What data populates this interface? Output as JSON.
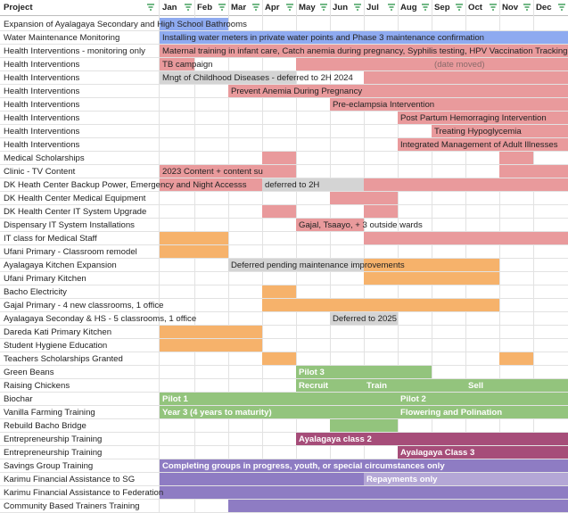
{
  "colors": {
    "blue": "#8eaaf0",
    "pink": "#e99a9c",
    "gray": "#d4d4d4",
    "orange": "#f6b26b",
    "green": "#93c47d",
    "magenta": "#a64d79",
    "purple": "#8e7cc3",
    "light_purple": "#b4a7d6"
  },
  "header": {
    "project": "Project",
    "months": [
      "Jan",
      "Feb",
      "Mar",
      "Apr",
      "May",
      "Jun",
      "Jul",
      "Aug",
      "Sep",
      "Oct",
      "Nov",
      "Dec"
    ]
  },
  "rows": [
    {
      "project": "Expansion of Ayalagaya Secondary and High School Bathrooms",
      "bars": [
        {
          "from": 0,
          "to": 2,
          "color": "blue"
        }
      ],
      "texts": []
    },
    {
      "project": "Water Maintenance Monitoring",
      "bars": [
        {
          "from": 0,
          "to": 12,
          "color": "blue"
        }
      ],
      "texts": [
        {
          "col": 0,
          "text": "Installing water meters in private water points and Phase 3 maintenance confirmation"
        }
      ]
    },
    {
      "project": "Health Interventions - monitoring only",
      "bars": [
        {
          "from": 0,
          "to": 12,
          "color": "pink"
        }
      ],
      "texts": [
        {
          "col": 0,
          "text": "Maternal training in infant care, Catch anemia during pregnancy, Syphilis testing, HPV Vaccination Tracking"
        }
      ]
    },
    {
      "project": "Health Interventions",
      "bars": [
        {
          "from": 0,
          "to": 1,
          "color": "pink"
        },
        {
          "from": 4,
          "to": 12,
          "color": "pink"
        }
      ],
      "texts": [
        {
          "col": 0,
          "text": "TB campaign"
        },
        {
          "col": 8,
          "text": "(date moved)",
          "muted": true
        }
      ]
    },
    {
      "project": "Health Interventions",
      "bars": [
        {
          "from": 0,
          "to": 4,
          "color": "gray"
        },
        {
          "from": 6,
          "to": 12,
          "color": "pink"
        }
      ],
      "texts": [
        {
          "col": 0,
          "text": "Mngt of Childhood Diseases - deferred to 2H 2024"
        }
      ]
    },
    {
      "project": "Health Interventions",
      "bars": [
        {
          "from": 2,
          "to": 12,
          "color": "pink"
        }
      ],
      "texts": [
        {
          "col": 2,
          "text": "Prevent Anemia During Pregnancy"
        }
      ]
    },
    {
      "project": "Health Interventions",
      "bars": [
        {
          "from": 5,
          "to": 12,
          "color": "pink"
        }
      ],
      "texts": [
        {
          "col": 5,
          "text": "Pre-eclampsia Intervention"
        }
      ]
    },
    {
      "project": "Health Interventions",
      "bars": [
        {
          "from": 7,
          "to": 12,
          "color": "pink"
        }
      ],
      "texts": [
        {
          "col": 7,
          "text": "Post Partum Hemorraging Intervention"
        }
      ]
    },
    {
      "project": "Health Interventions",
      "bars": [
        {
          "from": 8,
          "to": 12,
          "color": "pink"
        }
      ],
      "texts": [
        {
          "col": 8,
          "text": "Treating Hypoglycemia"
        }
      ]
    },
    {
      "project": "Health Interventions",
      "bars": [
        {
          "from": 7,
          "to": 12,
          "color": "pink"
        }
      ],
      "texts": [
        {
          "col": 7,
          "text": "Integrated Management of Adult Illnesses"
        }
      ]
    },
    {
      "project": "Medical Scholarships",
      "bars": [
        {
          "from": 3,
          "to": 4,
          "color": "pink"
        },
        {
          "from": 10,
          "to": 11,
          "color": "pink"
        }
      ],
      "texts": []
    },
    {
      "project": "Clinic - TV Content",
      "bars": [
        {
          "from": 0,
          "to": 4,
          "color": "pink"
        },
        {
          "from": 10,
          "to": 12,
          "color": "pink"
        }
      ],
      "texts": [
        {
          "col": 0,
          "text": "2023 Content + content su"
        }
      ]
    },
    {
      "project": "DK Heath Center Backup Power, Emergency and Night Accesss",
      "bars": [
        {
          "from": 0,
          "to": 3,
          "color": "pink"
        },
        {
          "from": 3,
          "to": 6,
          "color": "gray"
        },
        {
          "from": 6,
          "to": 12,
          "color": "pink"
        }
      ],
      "texts": [
        {
          "col": 3,
          "text": "deferred to 2H"
        }
      ]
    },
    {
      "project": "DK Health Center Medical Equipment",
      "bars": [
        {
          "from": 5,
          "to": 7,
          "color": "pink"
        }
      ],
      "texts": []
    },
    {
      "project": "DK Health Center IT System Upgrade",
      "bars": [
        {
          "from": 3,
          "to": 4,
          "color": "pink"
        },
        {
          "from": 6,
          "to": 7,
          "color": "pink"
        }
      ],
      "texts": []
    },
    {
      "project": "Dispensary IT System Installations",
      "bars": [
        {
          "from": 4,
          "to": 6,
          "color": "pink"
        }
      ],
      "texts": [
        {
          "col": 4,
          "text": "Gajal, Tsaayo, + 3 outside wards"
        }
      ]
    },
    {
      "project": "IT class for Medical Staff",
      "bars": [
        {
          "from": 0,
          "to": 2,
          "color": "orange"
        },
        {
          "from": 6,
          "to": 12,
          "color": "pink"
        }
      ],
      "texts": []
    },
    {
      "project": "Ufani Primary - Classroom remodel",
      "bars": [
        {
          "from": 0,
          "to": 2,
          "color": "orange"
        }
      ],
      "texts": []
    },
    {
      "project": "Ayalagaya Kitchen Expansion",
      "bars": [
        {
          "from": 2,
          "to": 6,
          "color": "gray"
        },
        {
          "from": 6,
          "to": 10,
          "color": "orange"
        }
      ],
      "texts": [
        {
          "col": 2,
          "text": "Deferred pending maintenance improvements"
        }
      ]
    },
    {
      "project": "Ufani Primary Kitchen",
      "bars": [
        {
          "from": 6,
          "to": 10,
          "color": "orange"
        }
      ],
      "texts": []
    },
    {
      "project": "Bacho Electricity",
      "bars": [
        {
          "from": 3,
          "to": 4,
          "color": "orange"
        }
      ],
      "texts": []
    },
    {
      "project": "Gajal Primary - 4 new classrooms, 1 office",
      "bars": [
        {
          "from": 3,
          "to": 10,
          "color": "orange"
        }
      ],
      "texts": []
    },
    {
      "project": "Ayalagaya Seconday & HS - 5 classrooms, 1 office",
      "bars": [
        {
          "from": 5,
          "to": 7,
          "color": "gray"
        }
      ],
      "texts": [
        {
          "col": 5,
          "text": "Deferred to 2025"
        }
      ]
    },
    {
      "project": "Dareda Kati Primary Kitchen",
      "bars": [
        {
          "from": 0,
          "to": 3,
          "color": "orange"
        }
      ],
      "texts": []
    },
    {
      "project": "Student Hygiene Education",
      "bars": [
        {
          "from": 0,
          "to": 3,
          "color": "orange"
        }
      ],
      "texts": []
    },
    {
      "project": "Teachers Scholarships Granted",
      "bars": [
        {
          "from": 3,
          "to": 4,
          "color": "orange"
        },
        {
          "from": 10,
          "to": 11,
          "color": "orange"
        }
      ],
      "texts": []
    },
    {
      "project": "Green Beans",
      "bars": [
        {
          "from": 4,
          "to": 8,
          "color": "green"
        }
      ],
      "texts": [
        {
          "col": 4,
          "text": "Pilot 3",
          "white": true
        }
      ]
    },
    {
      "project": "Raising Chickens",
      "bars": [
        {
          "from": 4,
          "to": 12,
          "color": "green"
        }
      ],
      "texts": [
        {
          "col": 4,
          "text": "Recruit",
          "white": true
        },
        {
          "col": 6,
          "text": "Train",
          "white": true
        },
        {
          "col": 9,
          "text": "Sell",
          "white": true
        }
      ]
    },
    {
      "project": "Biochar",
      "bars": [
        {
          "from": 0,
          "to": 12,
          "color": "green"
        }
      ],
      "texts": [
        {
          "col": 0,
          "text": "Pilot 1",
          "white": true
        },
        {
          "col": 7,
          "text": "Pilot 2",
          "white": true
        }
      ]
    },
    {
      "project": "Vanilla Farming Training",
      "bars": [
        {
          "from": 0,
          "to": 12,
          "color": "green"
        }
      ],
      "texts": [
        {
          "col": 0,
          "text": "Year 3 (4 years to maturity)",
          "white": true
        },
        {
          "col": 7,
          "text": "Flowering and Polination",
          "white": true
        }
      ]
    },
    {
      "project": "Rebuild Bacho Bridge",
      "bars": [
        {
          "from": 5,
          "to": 7,
          "color": "green"
        }
      ],
      "texts": []
    },
    {
      "project": "Entrepreneurship Training",
      "bars": [
        {
          "from": 4,
          "to": 12,
          "color": "magenta"
        }
      ],
      "texts": [
        {
          "col": 4,
          "text": "Ayalagaya class 2",
          "white": true
        }
      ]
    },
    {
      "project": "Entrepreneurship Training",
      "bars": [
        {
          "from": 7,
          "to": 12,
          "color": "magenta"
        }
      ],
      "texts": [
        {
          "col": 7,
          "text": "Ayalagaya Class 3",
          "white": true
        }
      ]
    },
    {
      "project": "Savings Group Training",
      "bars": [
        {
          "from": 0,
          "to": 12,
          "color": "purple"
        }
      ],
      "texts": [
        {
          "col": 0,
          "text": "Completing groups in progress, youth, or special circumstances only",
          "white": true
        }
      ]
    },
    {
      "project": "Karimu Financial Assistance to SG",
      "bars": [
        {
          "from": 0,
          "to": 6,
          "color": "purple"
        },
        {
          "from": 6,
          "to": 12,
          "color": "light_purple"
        }
      ],
      "texts": [
        {
          "col": 6,
          "text": "Repayments only",
          "white": true
        }
      ]
    },
    {
      "project": "Karimu Financial Assistance to Federation",
      "bars": [
        {
          "from": 0,
          "to": 12,
          "color": "purple"
        }
      ],
      "texts": []
    },
    {
      "project": "Community Based Trainers Training",
      "bars": [
        {
          "from": 2,
          "to": 12,
          "color": "purple"
        }
      ],
      "texts": []
    }
  ]
}
